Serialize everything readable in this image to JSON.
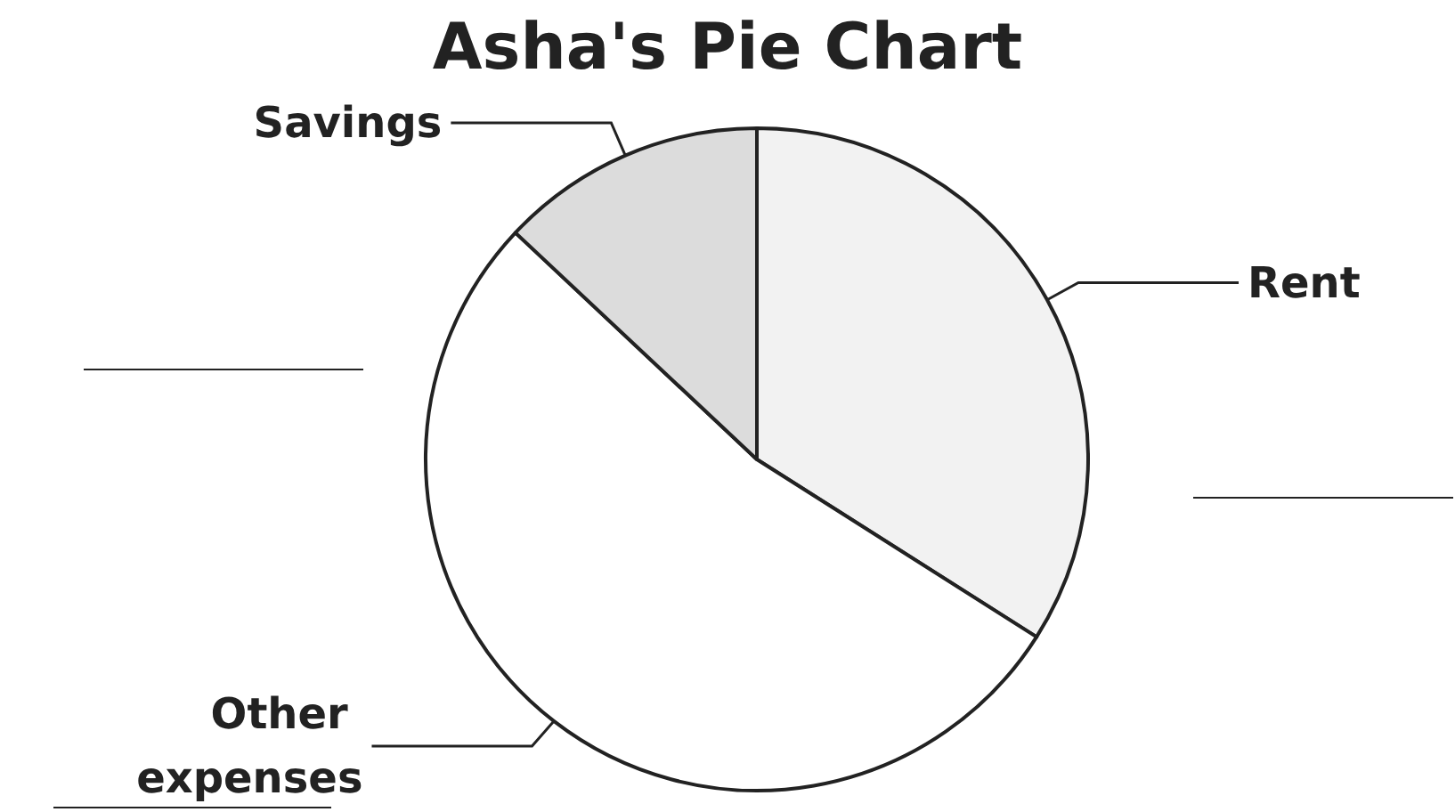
{
  "chart_data": {
    "type": "pie",
    "title": "Asha's Pie Chart",
    "categories": [
      "Rent",
      "Other expenses",
      "Savings"
    ],
    "values": [
      34,
      53,
      13
    ],
    "colors": [
      "#f2f2f2",
      "#ffffff",
      "#dcdcdc"
    ],
    "legend": false
  }
}
